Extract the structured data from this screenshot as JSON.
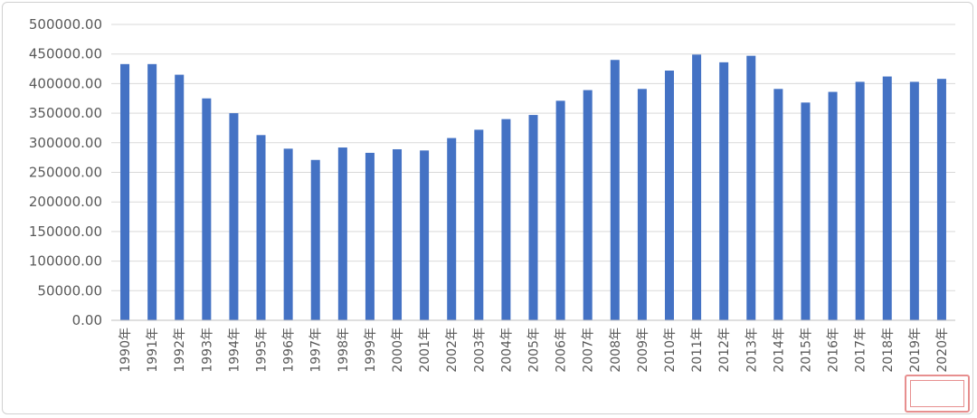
{
  "chart_data": {
    "type": "bar",
    "title": "",
    "xlabel": "",
    "ylabel": "",
    "ylim": [
      0,
      500000
    ],
    "yticks": [
      "0.00",
      "50000.00",
      "100000.00",
      "150000.00",
      "200000.00",
      "250000.00",
      "300000.00",
      "350000.00",
      "400000.00",
      "450000.00",
      "500000.00"
    ],
    "grid": true,
    "legend": "none",
    "bar_color": "#4472c4",
    "categories": [
      "1990年",
      "1991年",
      "1992年",
      "1993年",
      "1994年",
      "1995年",
      "1996年",
      "1997年",
      "1998年",
      "1999年",
      "2000年",
      "2001年",
      "2002年",
      "2003年",
      "2004年",
      "2005年",
      "2006年",
      "2007年",
      "2008年",
      "2009年",
      "2010年",
      "2011年",
      "2012年",
      "2013年",
      "2014年",
      "2015年",
      "2016年",
      "2017年",
      "2018年",
      "2019年",
      "2020年"
    ],
    "values": [
      433000,
      433000,
      415000,
      375000,
      350000,
      313000,
      290000,
      271000,
      292000,
      283000,
      289000,
      287000,
      308000,
      322000,
      340000,
      347000,
      371000,
      389000,
      440000,
      391000,
      422000,
      449000,
      436000,
      447000,
      391000,
      368000,
      386000,
      403000,
      412000,
      403000,
      408000
    ]
  }
}
